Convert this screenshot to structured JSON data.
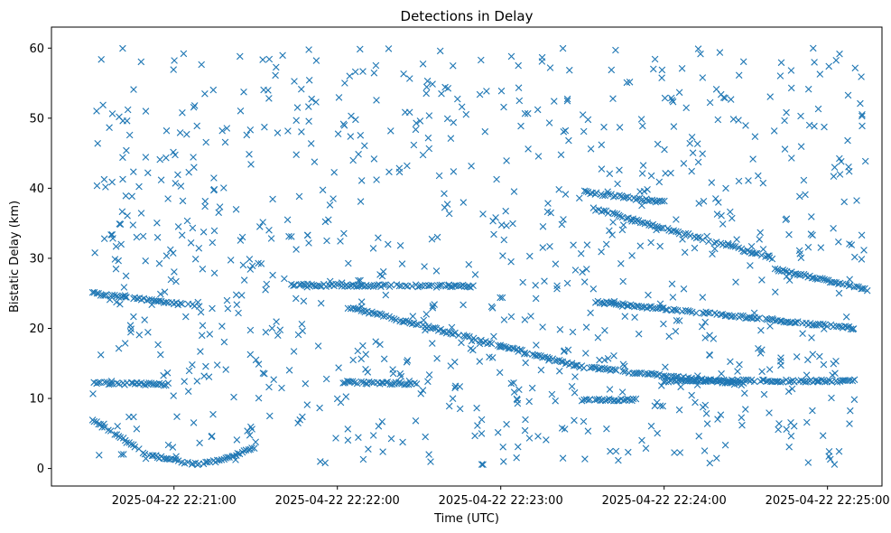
{
  "chart_data": {
    "type": "scatter",
    "title": "Detections in Delay",
    "xlabel": "Time (UTC)",
    "ylabel": "Bistatic Delay (km)",
    "marker": "x",
    "color": "#1f77b4",
    "grid": false,
    "legend": "none",
    "xlim": [
      "2025-04-22 22:20:15",
      "2025-04-22 22:25:20"
    ],
    "ylim": [
      -2.5,
      63
    ],
    "x_ticks": [
      "2025-04-22 22:21:00",
      "2025-04-22 22:22:00",
      "2025-04-22 22:23:00",
      "2025-04-22 22:24:00",
      "2025-04-22 22:25:00"
    ],
    "y_ticks": [
      "0",
      "10",
      "20",
      "30",
      "40",
      "50",
      "60"
    ],
    "tracks": [
      {
        "t": [
          "2025-04-22 22:20:30",
          "2025-04-22 22:20:50",
          "2025-04-22 22:21:07"
        ],
        "y": [
          7,
          2,
          0.6
        ]
      },
      {
        "t": [
          "2025-04-22 22:21:07",
          "2025-04-22 22:21:15",
          "2025-04-22 22:21:30"
        ],
        "y": [
          0.6,
          1.0,
          3.0
        ]
      },
      {
        "t": [
          "2025-04-22 22:20:30",
          "2025-04-22 22:21:08"
        ],
        "y": [
          25,
          23.2
        ]
      },
      {
        "t": [
          "2025-04-22 22:20:30",
          "2025-04-22 22:20:58"
        ],
        "y": [
          12.2,
          12.0
        ]
      },
      {
        "t": [
          "2025-04-22 22:21:43",
          "2025-04-22 22:22:50"
        ],
        "y": [
          26.2,
          26.0
        ]
      },
      {
        "t": [
          "2025-04-22 22:22:02",
          "2025-04-22 22:22:30"
        ],
        "y": [
          12.3,
          12.1
        ]
      },
      {
        "t": [
          "2025-04-22 22:22:05",
          "2025-04-22 22:23:30",
          "2025-04-22 22:24:30"
        ],
        "y": [
          23,
          14.5,
          12
        ]
      },
      {
        "t": [
          "2025-04-22 22:23:30",
          "2025-04-22 22:24:00"
        ],
        "y": [
          39.5,
          38
        ]
      },
      {
        "t": [
          "2025-04-22 22:23:35",
          "2025-04-22 22:24:40"
        ],
        "y": [
          37,
          30
        ]
      },
      {
        "t": [
          "2025-04-22 22:24:40",
          "2025-04-22 22:25:15"
        ],
        "y": [
          28.5,
          25.5
        ]
      },
      {
        "t": [
          "2025-04-22 22:23:35",
          "2025-04-22 22:25:10"
        ],
        "y": [
          23.8,
          20
        ]
      },
      {
        "t": [
          "2025-04-22 22:24:00",
          "2025-04-22 22:25:10"
        ],
        "y": [
          12.5,
          12.5
        ]
      },
      {
        "t": [
          "2025-04-22 22:23:30",
          "2025-04-22 22:23:50"
        ],
        "y": [
          9.8,
          9.8
        ]
      }
    ]
  }
}
